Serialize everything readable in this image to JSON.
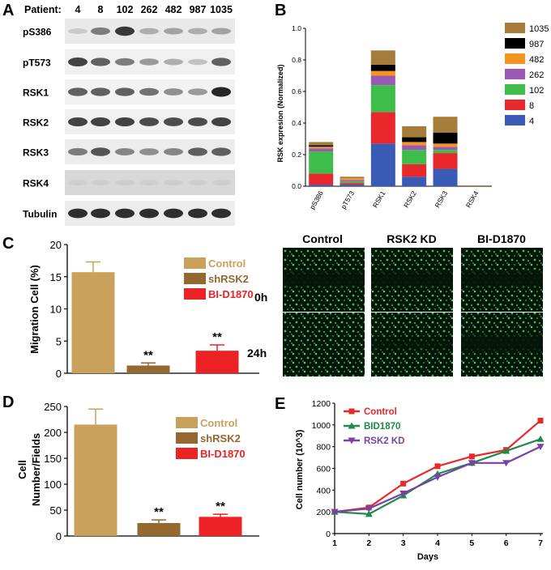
{
  "panels": {
    "a": "A",
    "b": "B",
    "c": "C",
    "d": "D",
    "e": "E"
  },
  "blot": {
    "header_label": "Patient:",
    "patients": [
      "4",
      "8",
      "102",
      "262",
      "482",
      "987",
      "1035"
    ],
    "rows": [
      {
        "label": "pS386",
        "intensity": [
          0.15,
          0.55,
          0.9,
          0.3,
          0.35,
          0.3,
          0.35
        ],
        "bg": "#e9e9e9"
      },
      {
        "label": "pT573",
        "intensity": [
          0.85,
          0.7,
          0.55,
          0.4,
          0.3,
          0.2,
          0.7
        ],
        "bg": "#f0f0f0"
      },
      {
        "label": "RSK1",
        "intensity": [
          0.7,
          0.7,
          0.7,
          0.6,
          0.45,
          0.4,
          1.0
        ],
        "bg": "#f2f2f2"
      },
      {
        "label": "RSK2",
        "intensity": [
          0.85,
          0.85,
          0.85,
          0.8,
          0.8,
          0.8,
          0.85
        ],
        "bg": "#f0f0f0"
      },
      {
        "label": "RSK3",
        "intensity": [
          0.55,
          0.75,
          0.5,
          0.45,
          0.5,
          0.7,
          0.7
        ],
        "bg": "#ececec"
      },
      {
        "label": "RSK4",
        "intensity": [
          0.12,
          0.12,
          0.12,
          0.12,
          0.12,
          0.12,
          0.12
        ],
        "bg": "#d8d8d8"
      },
      {
        "label": "Tubulin",
        "intensity": [
          0.95,
          0.95,
          0.95,
          0.95,
          0.95,
          0.95,
          0.95
        ],
        "bg": "#ececec"
      }
    ]
  },
  "chart_data": [
    {
      "id": "B",
      "type": "bar",
      "stacked": true,
      "ylabel": "RSK expresion (Normalized)",
      "ylim": [
        0,
        1.0
      ],
      "yticks": [
        "0.0",
        "0.2",
        "0.4",
        "0.6",
        "0.8",
        "1.0"
      ],
      "categories": [
        "pS386",
        "pT573",
        "RSK1",
        "RSK2",
        "RSK3",
        "RSK4"
      ],
      "series": [
        {
          "name": "4",
          "color": "#3a5bb5",
          "values": [
            0.01,
            0.01,
            0.27,
            0.06,
            0.11,
            0.0
          ]
        },
        {
          "name": "8",
          "color": "#e8282a",
          "values": [
            0.07,
            0.01,
            0.2,
            0.08,
            0.1,
            0.0
          ]
        },
        {
          "name": "102",
          "color": "#3ebd4a",
          "values": [
            0.14,
            0.01,
            0.17,
            0.09,
            0.02,
            0.0
          ]
        },
        {
          "name": "262",
          "color": "#9b59b6",
          "values": [
            0.02,
            0.01,
            0.06,
            0.03,
            0.02,
            0.0
          ]
        },
        {
          "name": "482",
          "color": "#f7941d",
          "values": [
            0.01,
            0.01,
            0.03,
            0.02,
            0.02,
            0.0
          ]
        },
        {
          "name": "987",
          "color": "#000000",
          "values": [
            0.01,
            0.0,
            0.04,
            0.03,
            0.07,
            0.0
          ]
        },
        {
          "name": "1035",
          "color": "#a67c3a",
          "values": [
            0.02,
            0.01,
            0.09,
            0.07,
            0.1,
            0.005
          ]
        }
      ],
      "legend_order": [
        "1035",
        "987",
        "482",
        "262",
        "102",
        "8",
        "4"
      ]
    },
    {
      "id": "C",
      "type": "bar",
      "ylabel": "Migration Cell (%)",
      "ylim": [
        0,
        20
      ],
      "yticks": [
        "0",
        "5",
        "10",
        "15",
        "20"
      ],
      "categories": [
        "Control",
        "shRSK2",
        "BI-D1870"
      ],
      "values": [
        15.7,
        1.2,
        3.5
      ],
      "errors": [
        1.6,
        0.4,
        0.9
      ],
      "colors": [
        "#c9a15a",
        "#94682e",
        "#ed2224"
      ],
      "annotations": [
        "",
        "**",
        "**"
      ],
      "legend_colors": [
        "#c9a15a",
        "#94682e",
        "#ed2224"
      ]
    },
    {
      "id": "D",
      "type": "bar",
      "ylabel_line1": "Cell",
      "ylabel_line2": "Number/Fields",
      "ylim": [
        0,
        250
      ],
      "yticks": [
        "0",
        "50",
        "100",
        "150",
        "200",
        "250"
      ],
      "categories": [
        "Control",
        "shRSK2",
        "BI-D1870"
      ],
      "values": [
        215,
        25,
        37
      ],
      "errors": [
        30,
        6,
        5
      ],
      "colors": [
        "#c9a15a",
        "#94682e",
        "#ed2224"
      ],
      "annotations": [
        "",
        "**",
        "**"
      ],
      "legend_colors": [
        "#c9a15a",
        "#94682e",
        "#ed2224"
      ]
    },
    {
      "id": "E",
      "type": "line",
      "xlabel": "Days",
      "ylabel": "Cell number (10^3)",
      "xlim": [
        1,
        7
      ],
      "ylim": [
        0,
        1200
      ],
      "xticks": [
        "1",
        "2",
        "3",
        "4",
        "5",
        "6",
        "7"
      ],
      "yticks": [
        "0",
        "200",
        "400",
        "600",
        "800",
        "1000",
        "1200"
      ],
      "x": [
        1,
        2,
        3,
        4,
        5,
        6,
        7
      ],
      "series": [
        {
          "name": "Control",
          "color": "#e8282a",
          "marker": "square",
          "values": [
            200,
            240,
            460,
            620,
            710,
            770,
            1040
          ]
        },
        {
          "name": "BID1870",
          "color": "#1f8a4c",
          "marker": "triangle",
          "values": [
            200,
            180,
            350,
            550,
            650,
            760,
            870
          ]
        },
        {
          "name": "RSK2 KD",
          "color": "#7b3fa8",
          "marker": "triangle-down",
          "values": [
            200,
            230,
            370,
            520,
            650,
            650,
            800
          ]
        }
      ]
    }
  ],
  "micro": {
    "columns": [
      "Control",
      "RSK2 KD",
      "BI-D1870"
    ],
    "rows": [
      "0h",
      "24h"
    ]
  }
}
